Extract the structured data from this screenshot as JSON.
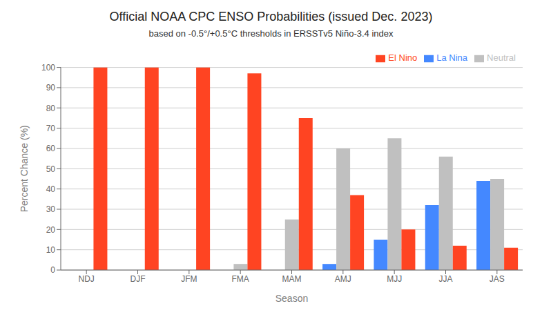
{
  "chart_data": {
    "type": "bar",
    "title": "Official NOAA CPC ENSO Probabilities (issued Dec. 2023)",
    "subtitle": "based on -0.5°/+0.5°C thresholds in ERSSTv5 Niño-3.4 index",
    "xlabel": "Season",
    "ylabel": "Percent Chance (%)",
    "categories": [
      "NDJ",
      "DJF",
      "JFM",
      "FMA",
      "MAM",
      "AMJ",
      "MJJ",
      "JJA",
      "JAS"
    ],
    "series": [
      {
        "name": "La Nina",
        "color": "#4488ff",
        "values": [
          0,
          0,
          0,
          0,
          0,
          3,
          15,
          32,
          44
        ]
      },
      {
        "name": "Neutral",
        "color": "#c0c0c0",
        "values": [
          0,
          0,
          0,
          3,
          25,
          60,
          65,
          56,
          45
        ]
      },
      {
        "name": "El Nino",
        "color": "#ff4422",
        "values": [
          100,
          100,
          100,
          97,
          75,
          37,
          20,
          12,
          11
        ]
      }
    ],
    "ylim": [
      0,
      100
    ],
    "yticks": [
      0,
      10,
      20,
      30,
      40,
      50,
      60,
      70,
      80,
      90,
      100
    ],
    "grid": true,
    "legend": "upper right"
  }
}
